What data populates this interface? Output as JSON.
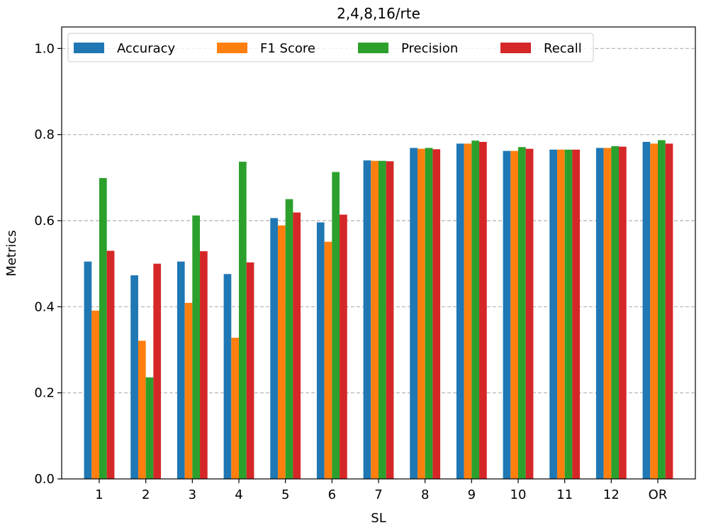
{
  "chart_data": {
    "type": "bar",
    "title": "2,4,8,16/rte",
    "xlabel": "SL",
    "ylabel": "Metrics",
    "ylim": [
      0,
      1.05
    ],
    "yticks": [
      "0.0",
      "0.2",
      "0.4",
      "0.6",
      "0.8",
      "1.0"
    ],
    "grid": "y-dashed",
    "legend_position": "top-left",
    "categories": [
      "1",
      "2",
      "3",
      "4",
      "5",
      "6",
      "7",
      "8",
      "9",
      "10",
      "11",
      "12",
      "OR"
    ],
    "series": [
      {
        "name": "Accuracy",
        "color": "#1f77b4",
        "values": [
          0.505,
          0.473,
          0.505,
          0.476,
          0.606,
          0.596,
          0.74,
          0.769,
          0.779,
          0.762,
          0.765,
          0.769,
          0.783
        ]
      },
      {
        "name": "F1 Score",
        "color": "#ff7f0e",
        "values": [
          0.391,
          0.321,
          0.409,
          0.328,
          0.589,
          0.551,
          0.739,
          0.767,
          0.779,
          0.762,
          0.765,
          0.769,
          0.779
        ]
      },
      {
        "name": "Precision",
        "color": "#2ca02c",
        "values": [
          0.699,
          0.236,
          0.612,
          0.737,
          0.65,
          0.713,
          0.739,
          0.769,
          0.786,
          0.771,
          0.765,
          0.773,
          0.787
        ]
      },
      {
        "name": "Recall",
        "color": "#d62728",
        "values": [
          0.53,
          0.5,
          0.529,
          0.503,
          0.619,
          0.614,
          0.738,
          0.766,
          0.783,
          0.767,
          0.765,
          0.772,
          0.779
        ]
      }
    ]
  }
}
